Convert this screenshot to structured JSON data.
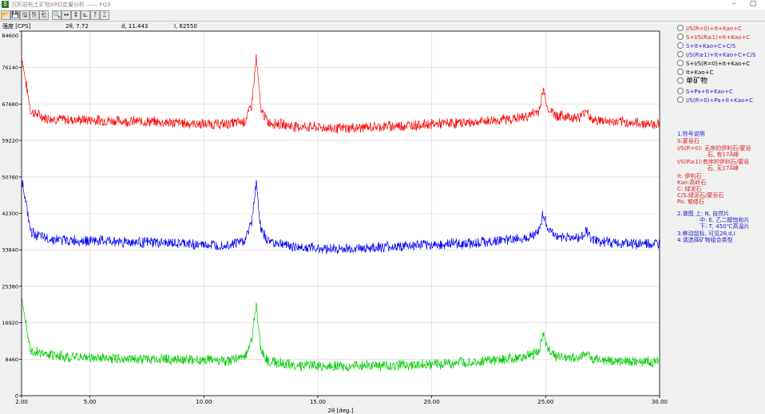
{
  "window": {
    "title": "沉积岩粘土矿物XRD定量分析 —— FQ3",
    "controls": [
      "–",
      "▢"
    ]
  },
  "toolbar": {
    "icons": [
      "open-folder-icon",
      "save-icon",
      "save-as-icon",
      "copy-icon",
      "paste-icon",
      "zoom-icon",
      "horizontal-scale-icon",
      "vertical-scale-icon",
      "axis-icon",
      "help-icon",
      "exit-icon"
    ],
    "glyphs": [
      "📂",
      "💾",
      "🖫",
      "⎘",
      "⎗",
      "🔍",
      "↔",
      "↕",
      "⊾",
      "?",
      "⌶"
    ]
  },
  "readout": {
    "ylabel": "强度 [CPS]",
    "two_theta": "2θ, 7.72",
    "d": "d, 11.443",
    "intensity": "I, 62550"
  },
  "chart_data": {
    "type": "line",
    "xlabel": "2θ [deg.]",
    "ylabel": "强度 [CPS]",
    "xlim": [
      2.0,
      30.0
    ],
    "ylim": [
      0,
      84600
    ],
    "x_ticks": [
      "2.00",
      "5.00",
      "10.00",
      "15.00",
      "20.00",
      "25.00",
      "30.00"
    ],
    "y_ticks": [
      "0",
      "8460",
      "16920",
      "25380",
      "33840",
      "42300",
      "50760",
      "59220",
      "67680",
      "76140",
      "84600"
    ],
    "grid": true,
    "series": [
      {
        "color": "#ff0000",
        "x": [
          2.0,
          2.15,
          2.4,
          3,
          4,
          5,
          6,
          8,
          10,
          11,
          11.8,
          12.1,
          12.3,
          12.5,
          12.8,
          14,
          16,
          18,
          20,
          22,
          24,
          24.7,
          24.9,
          25.1,
          25.5,
          26.5,
          26.8,
          27,
          28,
          30
        ],
        "y": [
          79000,
          74000,
          66000,
          64500,
          64000,
          64000,
          63800,
          63500,
          63000,
          63000,
          63700,
          67500,
          78500,
          66500,
          63500,
          62500,
          62000,
          62500,
          63000,
          63500,
          64500,
          66000,
          71000,
          66500,
          65000,
          64500,
          66500,
          64000,
          63500,
          63000
        ]
      },
      {
        "color": "#0000ff",
        "x": [
          2.0,
          2.15,
          2.4,
          3,
          4,
          5,
          6,
          8,
          10,
          11,
          11.8,
          12.1,
          12.3,
          12.5,
          12.8,
          14,
          16,
          18,
          20,
          22,
          24,
          24.7,
          24.9,
          25.1,
          25.5,
          26.5,
          26.8,
          27,
          28,
          30
        ],
        "y": [
          51000,
          46000,
          38000,
          36500,
          36000,
          36000,
          35800,
          35500,
          35000,
          35000,
          36000,
          40500,
          49500,
          38500,
          36000,
          34500,
          34000,
          34500,
          35000,
          35500,
          36500,
          38000,
          42500,
          38500,
          37000,
          36500,
          38500,
          36000,
          35500,
          35000
        ]
      },
      {
        "color": "#00cc00",
        "x": [
          2.0,
          2.15,
          2.4,
          3,
          4,
          5,
          6,
          8,
          10,
          11,
          11.8,
          12.1,
          12.3,
          12.5,
          12.8,
          14,
          16,
          18,
          20,
          22,
          24,
          24.7,
          24.9,
          25.1,
          25.5,
          26.5,
          26.8,
          27,
          28,
          30
        ],
        "y": [
          23500,
          18500,
          10500,
          9500,
          9000,
          8800,
          8700,
          8500,
          8200,
          8000,
          9000,
          13000,
          21500,
          10500,
          8000,
          7000,
          6800,
          7000,
          7300,
          7800,
          8800,
          10000,
          14800,
          10500,
          9000,
          8800,
          10000,
          8500,
          8000,
          7800
        ]
      }
    ]
  },
  "options": [
    {
      "label": "I/S(R=0)+It+Kao+C",
      "color": "#dd2222"
    },
    {
      "label": "S+I/S(R≥1)+It+Kao+C",
      "color": "#dd2222"
    },
    {
      "label": "S+It+Kao+C+C/S",
      "color": "#2222cc"
    },
    {
      "label": "I/S(R≥1)+It+Kao+C+C/S",
      "color": "#2222cc"
    },
    {
      "label": "S+I/S(R=0)+It+Kao+C",
      "color": "#000000"
    },
    {
      "label": "It+Kao+C",
      "color": "#000000"
    },
    {
      "label": "单矿物",
      "color": "#000000"
    },
    {
      "label": "S+Pa+It+Kao+C",
      "color": "#2222cc"
    },
    {
      "label": "I/S(R=0)+Pa+It+Kao+C",
      "color": "#2222cc"
    }
  ],
  "legend": {
    "section1_title": "1.符号说明",
    "s_line": "S:蒙皂石",
    "is0_l1": "I/S(R=0): 无序的伊利石/蒙皂",
    "is0_l2": "石, 有17Å峰",
    "is1_l1": "I/S(R≥1):有序的伊利石/蒙皂",
    "is1_l2": "石, 无17Å峰",
    "it": "It: 伊利石",
    "kao": "Kao:高岭石",
    "c": "C: 绿泥石",
    "cs": "C/S:绿泥石/蒙皂石",
    "pa": "Pa: 坡缕石",
    "section2_l1": "2.谱图 上: N, 自然片",
    "section2_l2": "中: E, 乙二醇饱和片",
    "section2_l3": "下: T, 450℃高温片",
    "section3": "3.移动鼠标, 可见2θ,d,I",
    "section4": "4.请选择矿物组合类型"
  }
}
